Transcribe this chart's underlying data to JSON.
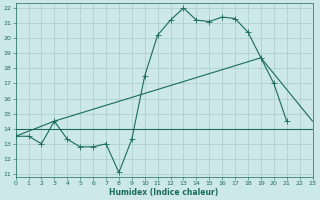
{
  "xlabel": "Humidex (Indice chaleur)",
  "bg_color": "#cce8e8",
  "grid_color": "#aacccc",
  "line_color": "#1a6b5a",
  "xlim": [
    0,
    23
  ],
  "ylim": [
    10.8,
    22.3
  ],
  "xticks": [
    0,
    1,
    2,
    3,
    4,
    5,
    6,
    7,
    8,
    9,
    10,
    11,
    12,
    13,
    14,
    15,
    16,
    17,
    18,
    19,
    20,
    21,
    22,
    23
  ],
  "yticks": [
    11,
    12,
    13,
    14,
    15,
    16,
    17,
    18,
    19,
    20,
    21,
    22
  ],
  "line1_x": [
    0,
    1,
    2,
    3,
    4,
    5,
    6,
    7,
    8,
    9,
    10,
    11,
    12,
    13,
    14,
    15,
    16,
    17,
    18,
    19,
    20,
    21
  ],
  "line1_y": [
    13.5,
    13.5,
    13.0,
    14.5,
    13.3,
    12.8,
    12.8,
    13.0,
    11.1,
    13.3,
    17.5,
    20.2,
    21.2,
    22.0,
    21.2,
    21.1,
    21.4,
    21.3,
    20.4,
    18.7,
    17.0,
    14.5
  ],
  "line2_x": [
    0,
    3,
    19,
    23
  ],
  "line2_y": [
    13.5,
    14.5,
    18.7,
    14.5
  ],
  "line3_x": [
    0,
    23
  ],
  "line3_y": [
    14.0,
    14.0
  ],
  "marker_size": 2.0,
  "linewidth": 0.8
}
